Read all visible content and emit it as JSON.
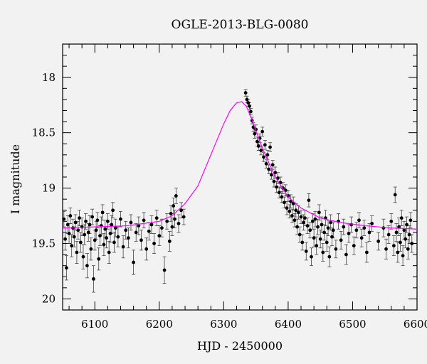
{
  "chart_data": {
    "type": "scatter",
    "title": "OGLE-2013-BLG-0080",
    "xlabel": "HJD - 2450000",
    "ylabel": "I magnitude",
    "xlim": [
      6050,
      6600
    ],
    "ylim": [
      20.1,
      17.7
    ],
    "y_inverted": true,
    "xticks": [
      6100,
      6200,
      6300,
      6400,
      6500,
      6600
    ],
    "yticks": [
      18,
      18.5,
      19,
      19.5,
      20
    ],
    "ytick_labels": [
      "18",
      "18.5",
      "19",
      "19.5",
      "20"
    ],
    "grid": false,
    "legend": "none",
    "model": {
      "name": "",
      "color": "#ff00ff",
      "baseline_mag": 19.37,
      "peak_mag": 18.22,
      "t0": 6328,
      "tE": 44,
      "x": [
        6050,
        6100,
        6150,
        6200,
        6220,
        6240,
        6260,
        6280,
        6300,
        6310,
        6320,
        6328,
        6335,
        6345,
        6360,
        6380,
        6400,
        6420,
        6450,
        6480,
        6520,
        6560,
        6600
      ],
      "y": [
        19.36,
        19.35,
        19.34,
        19.3,
        19.25,
        19.14,
        18.98,
        18.7,
        18.42,
        18.3,
        18.23,
        18.22,
        18.26,
        18.4,
        18.64,
        18.9,
        19.08,
        19.18,
        19.27,
        19.31,
        19.34,
        19.36,
        19.37
      ]
    },
    "series": [
      {
        "color": "#000000",
        "points": [
          [
            6052,
            19.28,
            0.07
          ],
          [
            6054,
            19.46,
            0.1
          ],
          [
            6056,
            19.72,
            0.11
          ],
          [
            6058,
            19.33,
            0.08
          ],
          [
            6060,
            19.41,
            0.09
          ],
          [
            6062,
            19.25,
            0.07
          ],
          [
            6064,
            19.52,
            0.1
          ],
          [
            6066,
            19.36,
            0.08
          ],
          [
            6068,
            19.44,
            0.09
          ],
          [
            6070,
            19.31,
            0.07
          ],
          [
            6072,
            19.58,
            0.1
          ],
          [
            6074,
            19.38,
            0.08
          ],
          [
            6076,
            19.27,
            0.07
          ],
          [
            6078,
            19.49,
            0.09
          ],
          [
            6080,
            19.35,
            0.08
          ],
          [
            6082,
            19.62,
            0.11
          ],
          [
            6084,
            19.42,
            0.09
          ],
          [
            6086,
            19.3,
            0.07
          ],
          [
            6088,
            19.7,
            0.11
          ],
          [
            6090,
            19.4,
            0.08
          ],
          [
            6092,
            19.33,
            0.08
          ],
          [
            6094,
            19.55,
            0.1
          ],
          [
            6096,
            19.26,
            0.07
          ],
          [
            6098,
            19.82,
            0.12
          ],
          [
            6100,
            19.47,
            0.09
          ],
          [
            6102,
            19.38,
            0.08
          ],
          [
            6104,
            19.29,
            0.07
          ],
          [
            6106,
            19.64,
            0.1
          ],
          [
            6108,
            19.43,
            0.09
          ],
          [
            6110,
            19.34,
            0.08
          ],
          [
            6112,
            19.22,
            0.07
          ],
          [
            6114,
            19.51,
            0.1
          ],
          [
            6116,
            19.37,
            0.08
          ],
          [
            6118,
            19.45,
            0.09
          ],
          [
            6120,
            19.3,
            0.07
          ],
          [
            6122,
            19.58,
            0.1
          ],
          [
            6124,
            19.41,
            0.08
          ],
          [
            6126,
            19.33,
            0.08
          ],
          [
            6128,
            19.2,
            0.07
          ],
          [
            6130,
            19.49,
            0.09
          ],
          [
            6132,
            19.36,
            0.08
          ],
          [
            6136,
            19.44,
            0.09
          ],
          [
            6140,
            19.28,
            0.07
          ],
          [
            6144,
            19.53,
            0.1
          ],
          [
            6148,
            19.38,
            0.08
          ],
          [
            6152,
            19.45,
            0.09
          ],
          [
            6156,
            19.31,
            0.07
          ],
          [
            6160,
            19.67,
            0.11
          ],
          [
            6164,
            19.4,
            0.08
          ],
          [
            6168,
            19.34,
            0.08
          ],
          [
            6172,
            19.47,
            0.09
          ],
          [
            6176,
            19.29,
            0.07
          ],
          [
            6180,
            19.55,
            0.1
          ],
          [
            6184,
            19.39,
            0.08
          ],
          [
            6188,
            19.33,
            0.08
          ],
          [
            6192,
            19.5,
            0.09
          ],
          [
            6196,
            19.27,
            0.07
          ],
          [
            6200,
            19.43,
            0.09
          ],
          [
            6204,
            19.36,
            0.08
          ],
          [
            6208,
            19.74,
            0.12
          ],
          [
            6212,
            19.3,
            0.07
          ],
          [
            6216,
            19.48,
            0.09
          ],
          [
            6218,
            19.23,
            0.07
          ],
          [
            6220,
            19.35,
            0.08
          ],
          [
            6222,
            19.16,
            0.07
          ],
          [
            6224,
            19.28,
            0.08
          ],
          [
            6226,
            19.07,
            0.07
          ],
          [
            6230,
            19.32,
            0.08
          ],
          [
            6234,
            19.2,
            0.07
          ],
          [
            6238,
            19.26,
            0.07
          ],
          [
            6334,
            18.14,
            0.03
          ],
          [
            6336,
            18.2,
            0.03
          ],
          [
            6338,
            18.23,
            0.03
          ],
          [
            6340,
            18.26,
            0.03
          ],
          [
            6342,
            18.31,
            0.03
          ],
          [
            6344,
            18.39,
            0.03
          ],
          [
            6346,
            18.45,
            0.04
          ],
          [
            6348,
            18.51,
            0.04
          ],
          [
            6350,
            18.47,
            0.04
          ],
          [
            6352,
            18.58,
            0.04
          ],
          [
            6354,
            18.62,
            0.04
          ],
          [
            6356,
            18.55,
            0.04
          ],
          [
            6358,
            18.66,
            0.04
          ],
          [
            6360,
            18.49,
            0.04
          ],
          [
            6362,
            18.72,
            0.04
          ],
          [
            6364,
            18.61,
            0.04
          ],
          [
            6366,
            18.78,
            0.04
          ],
          [
            6368,
            18.7,
            0.04
          ],
          [
            6370,
            18.83,
            0.04
          ],
          [
            6372,
            18.63,
            0.04
          ],
          [
            6374,
            18.88,
            0.04
          ],
          [
            6376,
            18.79,
            0.04
          ],
          [
            6378,
            18.94,
            0.05
          ],
          [
            6380,
            18.86,
            0.05
          ],
          [
            6382,
            18.99,
            0.05
          ],
          [
            6384,
            18.91,
            0.05
          ],
          [
            6386,
            19.04,
            0.05
          ],
          [
            6388,
            18.95,
            0.05
          ],
          [
            6390,
            19.08,
            0.05
          ],
          [
            6392,
            19.0,
            0.05
          ],
          [
            6394,
            19.13,
            0.05
          ],
          [
            6396,
            19.02,
            0.05
          ],
          [
            6398,
            19.18,
            0.06
          ],
          [
            6400,
            19.07,
            0.05
          ],
          [
            6402,
            19.21,
            0.06
          ],
          [
            6404,
            19.12,
            0.06
          ],
          [
            6406,
            19.25,
            0.06
          ],
          [
            6408,
            19.14,
            0.06
          ],
          [
            6410,
            19.29,
            0.06
          ],
          [
            6412,
            19.2,
            0.06
          ],
          [
            6414,
            19.35,
            0.07
          ],
          [
            6416,
            19.22,
            0.06
          ],
          [
            6418,
            19.42,
            0.07
          ],
          [
            6420,
            19.26,
            0.06
          ],
          [
            6422,
            19.49,
            0.07
          ],
          [
            6424,
            19.31,
            0.07
          ],
          [
            6426,
            19.27,
            0.07
          ],
          [
            6428,
            19.57,
            0.08
          ],
          [
            6430,
            19.34,
            0.07
          ],
          [
            6432,
            19.11,
            0.06
          ],
          [
            6434,
            19.38,
            0.07
          ],
          [
            6436,
            19.62,
            0.08
          ],
          [
            6438,
            19.3,
            0.07
          ],
          [
            6440,
            19.45,
            0.08
          ],
          [
            6442,
            19.28,
            0.07
          ],
          [
            6444,
            19.52,
            0.08
          ],
          [
            6446,
            19.35,
            0.07
          ],
          [
            6448,
            19.22,
            0.07
          ],
          [
            6450,
            19.46,
            0.08
          ],
          [
            6452,
            19.33,
            0.07
          ],
          [
            6454,
            19.58,
            0.08
          ],
          [
            6456,
            19.4,
            0.07
          ],
          [
            6458,
            19.27,
            0.07
          ],
          [
            6460,
            19.49,
            0.08
          ],
          [
            6462,
            19.36,
            0.07
          ],
          [
            6464,
            19.62,
            0.09
          ],
          [
            6466,
            19.31,
            0.07
          ],
          [
            6468,
            19.44,
            0.08
          ],
          [
            6470,
            19.38,
            0.07
          ],
          [
            6474,
            19.55,
            0.08
          ],
          [
            6478,
            19.3,
            0.07
          ],
          [
            6482,
            19.47,
            0.08
          ],
          [
            6486,
            19.35,
            0.07
          ],
          [
            6490,
            19.6,
            0.09
          ],
          [
            6494,
            19.41,
            0.08
          ],
          [
            6498,
            19.33,
            0.07
          ],
          [
            6502,
            19.52,
            0.08
          ],
          [
            6506,
            19.38,
            0.07
          ],
          [
            6510,
            19.29,
            0.07
          ],
          [
            6514,
            19.45,
            0.08
          ],
          [
            6518,
            19.36,
            0.07
          ],
          [
            6522,
            19.58,
            0.09
          ],
          [
            6526,
            19.4,
            0.08
          ],
          [
            6530,
            19.32,
            0.07
          ],
          [
            6540,
            19.48,
            0.08
          ],
          [
            6548,
            19.36,
            0.08
          ],
          [
            6552,
            19.55,
            0.09
          ],
          [
            6556,
            19.42,
            0.08
          ],
          [
            6560,
            19.3,
            0.07
          ],
          [
            6564,
            19.52,
            0.09
          ],
          [
            6566,
            19.06,
            0.07
          ],
          [
            6568,
            19.4,
            0.08
          ],
          [
            6570,
            19.58,
            0.09
          ],
          [
            6572,
            19.35,
            0.08
          ],
          [
            6574,
            19.49,
            0.08
          ],
          [
            6576,
            19.27,
            0.07
          ],
          [
            6578,
            19.61,
            0.09
          ],
          [
            6580,
            19.38,
            0.08
          ],
          [
            6582,
            19.46,
            0.08
          ],
          [
            6584,
            19.33,
            0.07
          ],
          [
            6586,
            19.55,
            0.09
          ],
          [
            6588,
            19.42,
            0.08
          ],
          [
            6590,
            19.29,
            0.07
          ],
          [
            6592,
            19.5,
            0.08
          ]
        ]
      }
    ]
  }
}
